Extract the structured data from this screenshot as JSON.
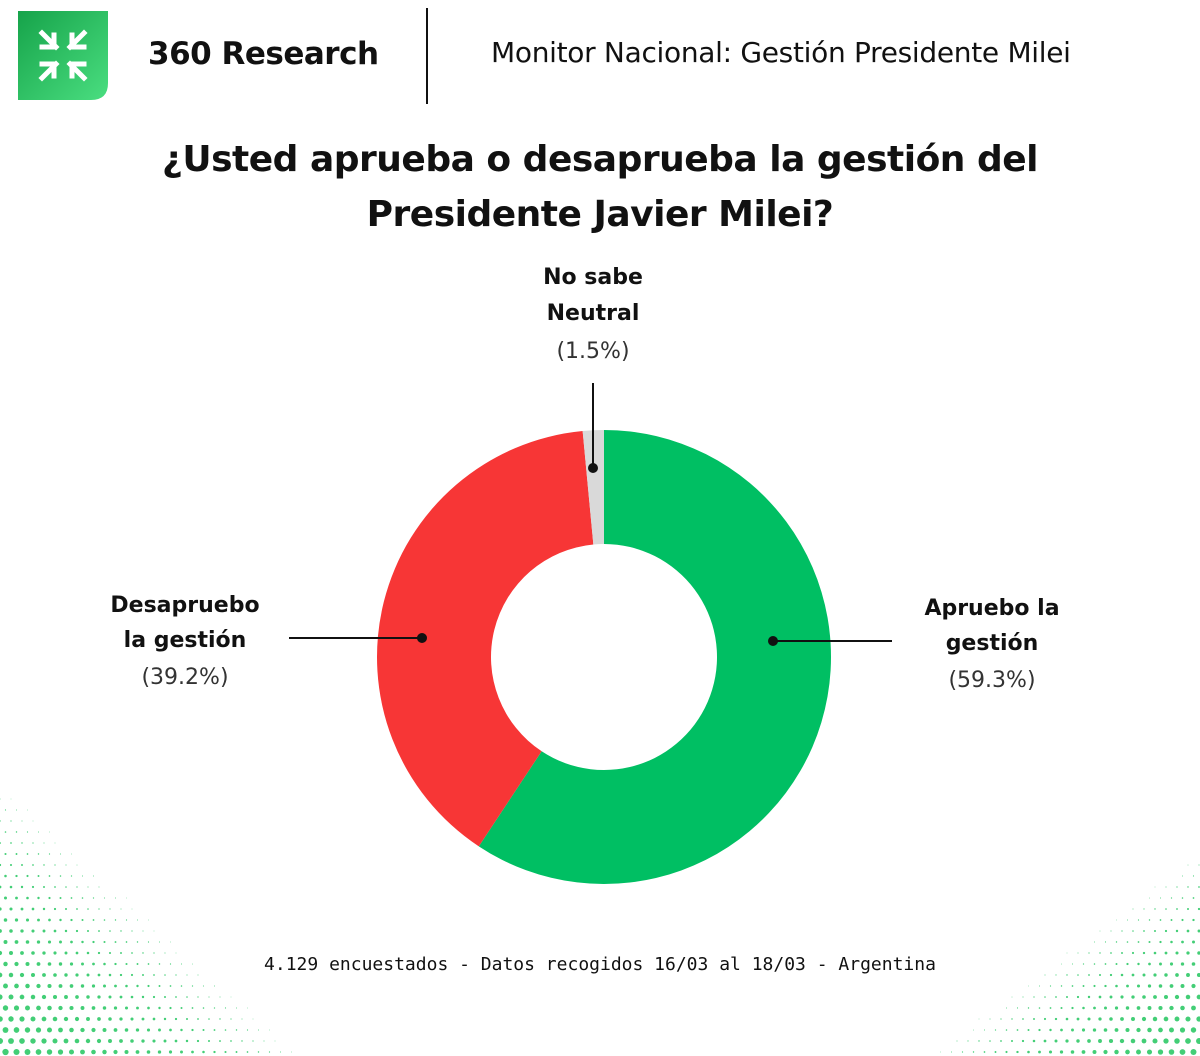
{
  "header": {
    "brand_name": "360 Research",
    "subtitle": "Monitor Nacional: Gestión Presidente Milei",
    "logo_icon": "x-arrows-icon",
    "brand_color": "#22c55e"
  },
  "chart_data": {
    "type": "pie",
    "variant": "donut",
    "title_line1": "¿Usted aprueba o desaprueba la gestión del",
    "title_line2": "Presidente Javier Milei?",
    "slices": [
      {
        "name_line1": "Apruebo la",
        "name_line2": "gestión",
        "value": 59.3,
        "pct_label": "(59.3%)",
        "color": "#00bf63"
      },
      {
        "name_line1": "Desapruebo",
        "name_line2": "la gestión",
        "value": 39.2,
        "pct_label": "(39.2%)",
        "color": "#f73636"
      },
      {
        "name_line1": "No sabe",
        "name_line2": "Neutral",
        "value": 1.5,
        "pct_label": "(1.5%)",
        "color": "#d9d9d9"
      }
    ]
  },
  "footer": {
    "note": "4.129 encuestados - Datos recogidos 16/03 al 18/03 - Argentina"
  }
}
